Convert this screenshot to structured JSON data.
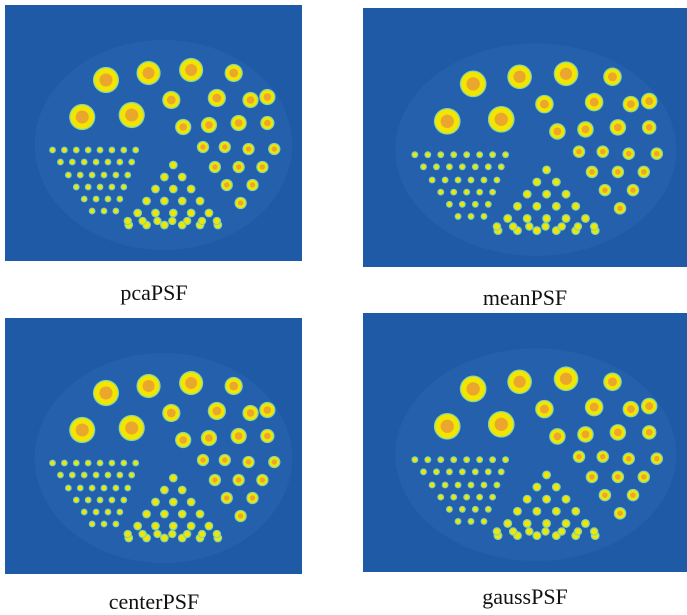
{
  "panels": [
    {
      "caption": "pcaPSF"
    },
    {
      "caption": "meanPSF"
    },
    {
      "caption": "centerPSF"
    },
    {
      "caption": "gaussPSF"
    }
  ],
  "colors": {
    "background": "#1f5aa6",
    "spot_outer": "#f2e600",
    "spot_inner": "#e8963a",
    "spot_edge": "#7fd6b0"
  }
}
